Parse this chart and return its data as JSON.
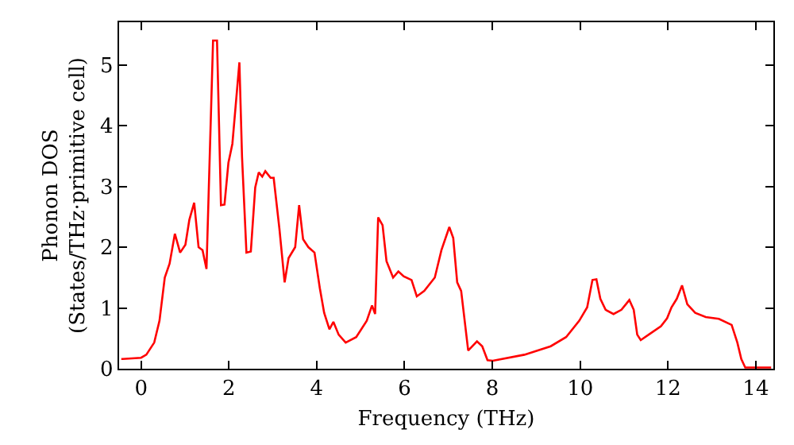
{
  "chart_data": {
    "type": "line",
    "xlabel": "Frequency (THz)",
    "ylabel": "Phonon DOS\n(States/THz·primitive cell)",
    "xlim": [
      -0.5,
      14.4
    ],
    "ylim": [
      0,
      5.7
    ],
    "xticks": [
      0,
      2,
      4,
      6,
      8,
      10,
      12,
      14
    ],
    "yticks": [
      0,
      1,
      2,
      3,
      4,
      5
    ],
    "grid": false,
    "marker": "none",
    "line_style": "solid",
    "series": [
      {
        "color": "#ff0000",
        "x": [
          -0.45,
          -0.42,
          0,
          0.12,
          0.3,
          0.42,
          0.54,
          0.65,
          0.77,
          0.89,
          1.01,
          1.1,
          1.21,
          1.31,
          1.4,
          1.49,
          1.64,
          1.73,
          1.82,
          1.9,
          1.99,
          2.08,
          2.24,
          2.3,
          2.4,
          2.5,
          2.6,
          2.68,
          2.76,
          2.83,
          2.95,
          3.02,
          3.15,
          3.27,
          3.36,
          3.51,
          3.6,
          3.69,
          3.81,
          3.95,
          4.07,
          4.17,
          4.29,
          4.38,
          4.5,
          4.66,
          4.9,
          5.14,
          5.26,
          5.33,
          5.4,
          5.5,
          5.59,
          5.74,
          5.86,
          5.98,
          6.16,
          6.28,
          6.45,
          6.69,
          6.84,
          7.02,
          7.11,
          7.2,
          7.29,
          7.45,
          7.65,
          7.77,
          7.89,
          8.01,
          8.73,
          9.33,
          9.68,
          9.98,
          10.16,
          10.28,
          10.37,
          10.46,
          10.58,
          10.76,
          10.94,
          11.12,
          11.22,
          11.3,
          11.38,
          11.6,
          11.84,
          11.98,
          12.08,
          12.2,
          12.32,
          12.44,
          12.62,
          12.86,
          13.16,
          13.45,
          13.58,
          13.67,
          13.76,
          14.35
        ],
        "values": [
          0.16,
          0.16,
          0.18,
          0.23,
          0.43,
          0.79,
          1.5,
          1.73,
          2.22,
          1.91,
          2.04,
          2.45,
          2.73,
          2.0,
          1.95,
          1.64,
          5.4,
          5.4,
          2.69,
          2.7,
          3.39,
          3.7,
          5.04,
          3.48,
          1.91,
          1.93,
          2.98,
          3.23,
          3.16,
          3.25,
          3.14,
          3.14,
          2.31,
          1.42,
          1.82,
          2.0,
          2.69,
          2.13,
          2.0,
          1.91,
          1.33,
          0.92,
          0.65,
          0.77,
          0.56,
          0.43,
          0.52,
          0.79,
          1.04,
          0.9,
          2.49,
          2.36,
          1.77,
          1.5,
          1.6,
          1.52,
          1.46,
          1.19,
          1.28,
          1.5,
          1.95,
          2.33,
          2.15,
          1.42,
          1.28,
          0.3,
          0.45,
          0.37,
          0.14,
          0.13,
          0.23,
          0.37,
          0.52,
          0.79,
          1.01,
          1.46,
          1.47,
          1.15,
          0.97,
          0.9,
          0.97,
          1.13,
          0.97,
          0.56,
          0.47,
          0.58,
          0.7,
          0.83,
          1.01,
          1.15,
          1.37,
          1.06,
          0.92,
          0.85,
          0.82,
          0.72,
          0.43,
          0.16,
          0.02,
          0.02
        ]
      }
    ]
  }
}
